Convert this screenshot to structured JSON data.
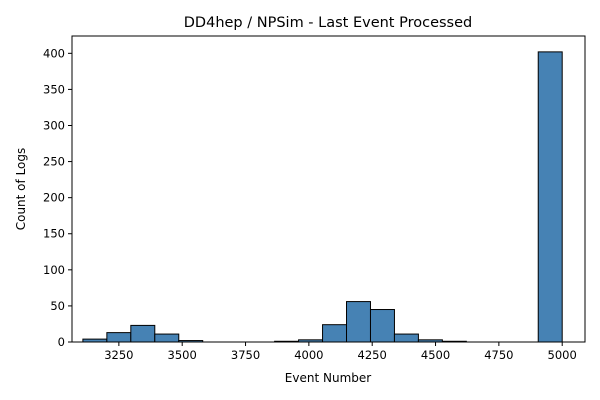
{
  "chart_data": {
    "type": "bar",
    "title": "DD4hep / NPSim - Last Event Processed",
    "xlabel": "Event Number",
    "ylabel": "Count of Logs",
    "xlim": [
      3065,
      5090
    ],
    "ylim": [
      0,
      424
    ],
    "xticks": [
      3250,
      3500,
      3750,
      4000,
      4250,
      4500,
      4750,
      5000
    ],
    "yticks": [
      0,
      50,
      100,
      150,
      200,
      250,
      300,
      350,
      400
    ],
    "bin_width": 94.6,
    "bin_starts": [
      3108.0,
      3202.6,
      3297.2,
      3391.8,
      3486.4,
      3581.0,
      3675.6,
      3770.2,
      3864.8,
      3959.4,
      4054.0,
      4148.6,
      4243.2,
      4337.8,
      4432.4,
      4527.0,
      4621.6,
      4716.2,
      4810.8,
      4905.4
    ],
    "values": [
      4,
      13,
      23,
      11,
      2,
      0,
      0,
      0,
      1,
      3,
      24,
      56,
      45,
      11,
      3,
      1,
      0,
      0,
      0,
      402
    ],
    "bar_color": "#4682b4",
    "edge_color": "#000000",
    "grid": false,
    "legend": "none"
  }
}
